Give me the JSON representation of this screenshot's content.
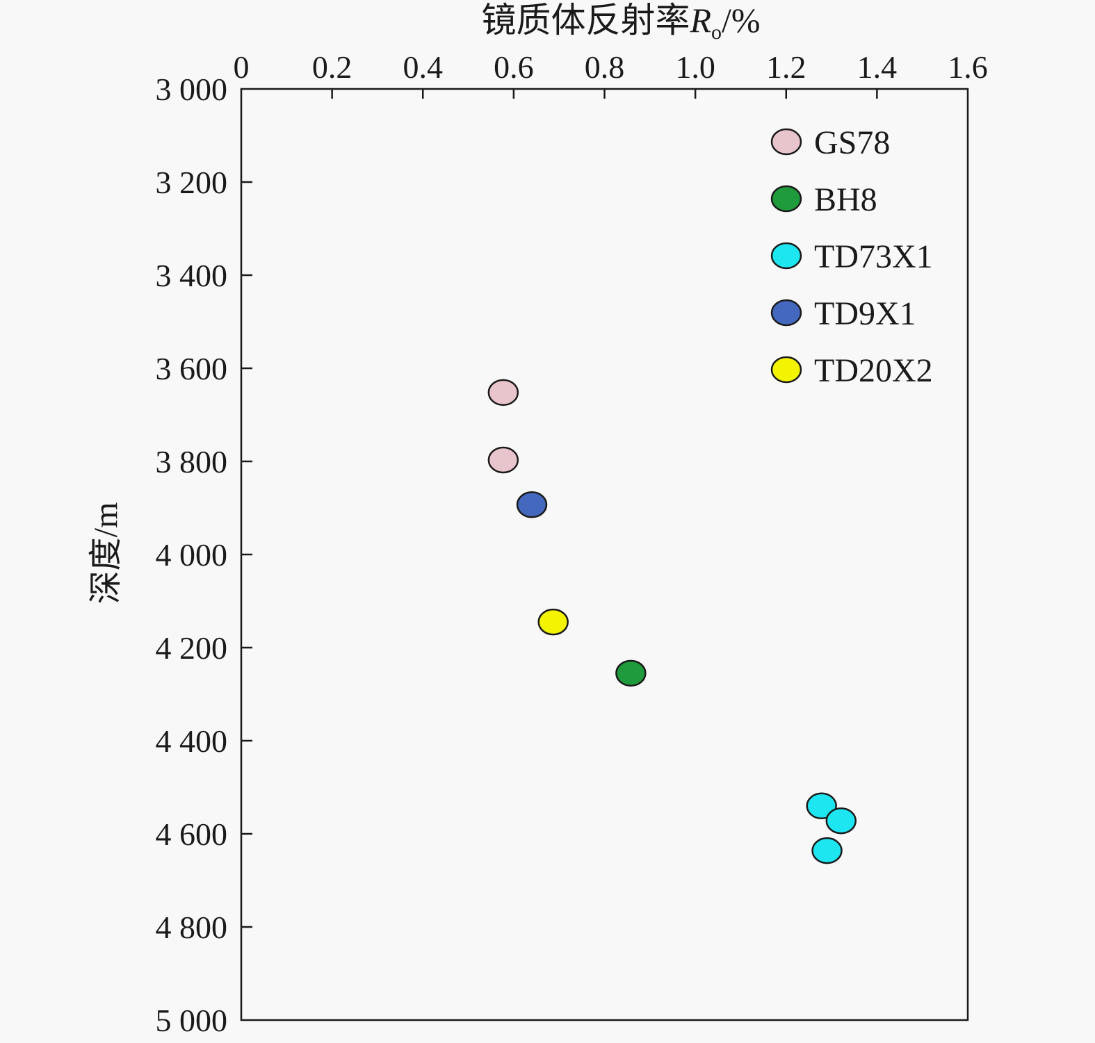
{
  "chart_data": {
    "type": "scatter",
    "title": "",
    "x_axis": {
      "label_main": "镜质体反射率",
      "label_symbol": "R",
      "label_subscript": "o",
      "label_unit": "/%",
      "position": "top",
      "range": [
        0,
        1.6
      ],
      "ticks": [
        0,
        0.2,
        0.4,
        0.6,
        0.8,
        1.0,
        1.2,
        1.4,
        1.6
      ],
      "tick_labels": [
        "0",
        "0.2",
        "0.4",
        "0.6",
        "0.8",
        "1.0",
        "1.2",
        "1.4",
        "1.6"
      ]
    },
    "y_axis": {
      "label": "深度/m",
      "position": "left",
      "inverted": true,
      "range": [
        3000,
        5000
      ],
      "ticks": [
        3000,
        3200,
        3400,
        3600,
        3800,
        4000,
        4200,
        4400,
        4600,
        4800,
        5000
      ],
      "tick_labels": [
        "3 000",
        "3 200",
        "3 400",
        "3 600",
        "3 800",
        "4 000",
        "4 200",
        "4 400",
        "4 600",
        "4 800",
        "5 000"
      ]
    },
    "grid": false,
    "legend_placement": "top-right",
    "series": [
      {
        "name": "GS78",
        "color": "#e8c4cc",
        "points": [
          {
            "x": 0.577,
            "y": 3652
          },
          {
            "x": 0.577,
            "y": 3797
          }
        ]
      },
      {
        "name": "BH8",
        "color": "#1f9a3c",
        "points": [
          {
            "x": 0.858,
            "y": 4255
          }
        ]
      },
      {
        "name": "TD73X1",
        "color": "#1ee6f0",
        "points": [
          {
            "x": 1.278,
            "y": 4540
          },
          {
            "x": 1.321,
            "y": 4572
          },
          {
            "x": 1.29,
            "y": 4636
          }
        ]
      },
      {
        "name": "TD9X1",
        "color": "#4468be",
        "points": [
          {
            "x": 0.64,
            "y": 3893
          }
        ]
      },
      {
        "name": "TD20X2",
        "color": "#f4f400",
        "points": [
          {
            "x": 0.687,
            "y": 4145
          }
        ]
      }
    ]
  }
}
